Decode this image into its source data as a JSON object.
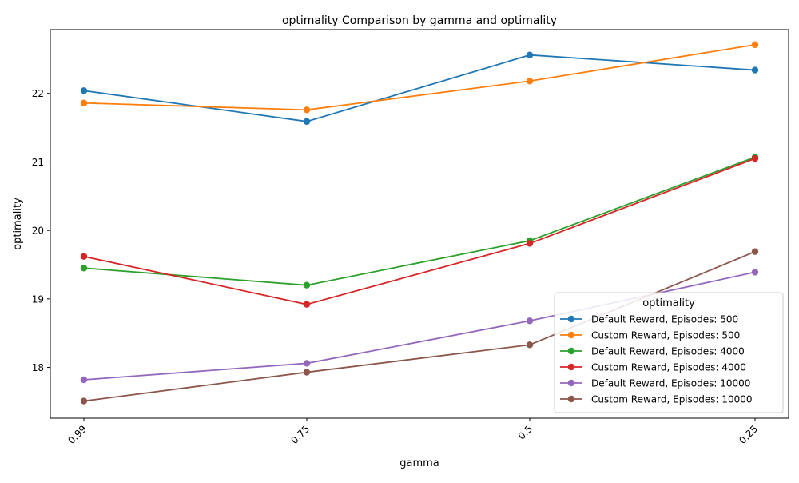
{
  "chart_data": {
    "type": "line",
    "title": "optimality Comparison by gamma and optimality",
    "xlabel": "gamma",
    "ylabel": "optimality",
    "categories": [
      "0.99",
      "0.75",
      "0.5",
      "0.25"
    ],
    "yticks": [
      "18",
      "19",
      "20",
      "21",
      "22"
    ],
    "ylim": [
      17.26,
      22.93
    ],
    "grid": false,
    "legend": {
      "title": "optimality",
      "placement": "lower-right"
    },
    "marker": "circle",
    "series": [
      {
        "name": "Default Reward, Episodes: 500",
        "color": "#1f77b4",
        "values": [
          22.04,
          21.59,
          22.56,
          22.34
        ]
      },
      {
        "name": "Custom Reward, Episodes: 500",
        "color": "#ff7f0e",
        "values": [
          21.86,
          21.76,
          22.18,
          22.71
        ]
      },
      {
        "name": "Default Reward, Episodes: 4000",
        "color": "#2ca02c",
        "values": [
          19.45,
          19.2,
          19.85,
          21.07
        ]
      },
      {
        "name": "Custom Reward, Episodes: 4000",
        "color": "#d62728",
        "values": [
          19.62,
          18.92,
          19.81,
          21.05
        ]
      },
      {
        "name": "Default Reward, Episodes: 10000",
        "color": "#9467bd",
        "values": [
          17.82,
          18.06,
          18.68,
          19.39
        ]
      },
      {
        "name": "Custom Reward, Episodes: 10000",
        "color": "#8c564b",
        "values": [
          17.51,
          17.93,
          18.33,
          19.69
        ]
      }
    ]
  }
}
